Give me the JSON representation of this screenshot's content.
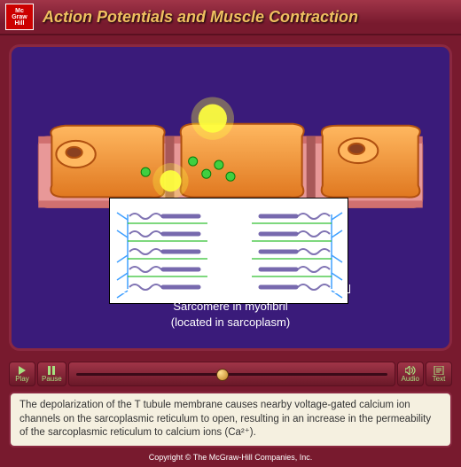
{
  "header": {
    "logo_line1": "Mc",
    "logo_line2": "Graw",
    "logo_line3": "Hill",
    "title": "Action Potentials and Muscle Contraction"
  },
  "stage": {
    "background": "#3a1b7a",
    "label_line1": "Sarcomere in myofibril",
    "label_line2": "(located in sarcoplasm)",
    "sr_color": "#f09030",
    "sr_highlight": "#ffb860",
    "sr_outline": "#b05010",
    "tissue_color": "#e89898",
    "flash_color": "#ffff40",
    "ion_color": "#40d040",
    "sarcomere": {
      "zline_color": "#40a0ff",
      "thin_color": "#30c030",
      "thick_color": "#6050a0"
    }
  },
  "controls": {
    "play": "Play",
    "pause": "Pause",
    "audio": "Audio",
    "text": "Text",
    "progress": 0.45,
    "icon_color": "#a8e080"
  },
  "caption": "The depolarization of the T tubule membrane causes nearby voltage-gated calcium ion channels on the sarcoplasmic reticulum to open, resulting in an increase in the permeability of the sarcoplasmic reticulum to calcium ions (Ca²⁺).",
  "copyright": "Copyright © The McGraw-Hill Companies, Inc."
}
